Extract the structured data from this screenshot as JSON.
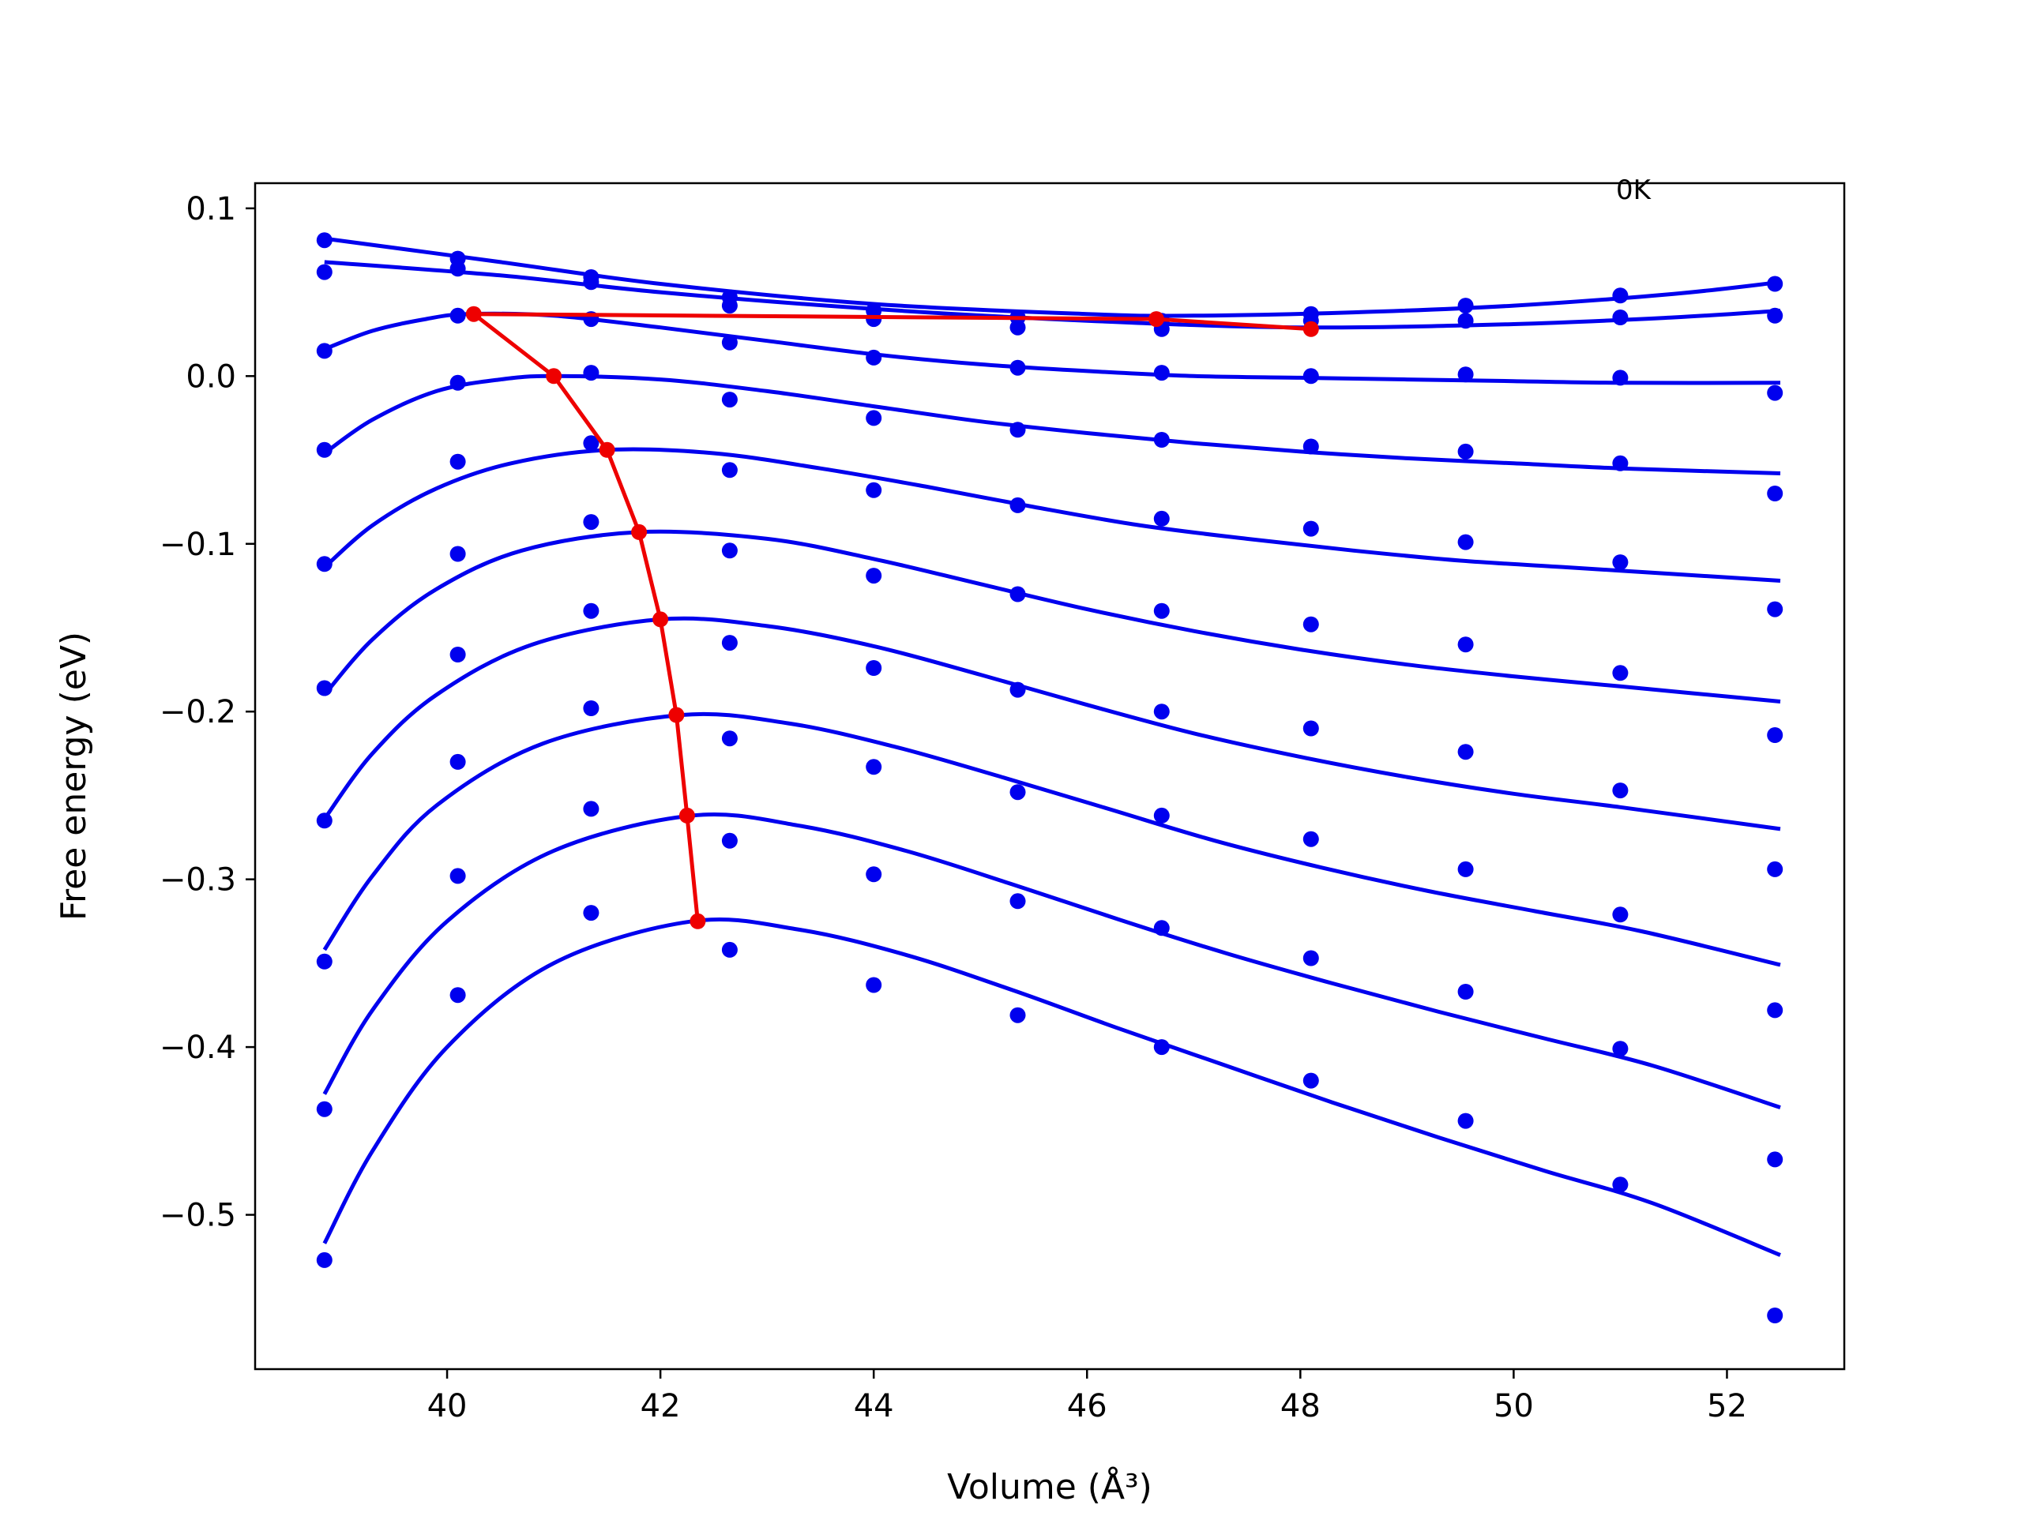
{
  "chart_data": {
    "type": "line",
    "xlabel": "Volume (Å³)",
    "ylabel": "Free energy (eV)",
    "xlim": [
      38.2,
      53.1
    ],
    "ylim": [
      -0.592,
      0.115
    ],
    "xticks": [
      40,
      42,
      44,
      46,
      48,
      50,
      52
    ],
    "yticks": [
      -0.5,
      -0.4,
      -0.3,
      -0.2,
      -0.1,
      0.0,
      0.1
    ],
    "xtick_labels": [
      "40",
      "42",
      "44",
      "46",
      "48",
      "50",
      "52"
    ],
    "ytick_labels": [
      "−0.5",
      "−0.4",
      "−0.3",
      "−0.2",
      "−0.1",
      "0.0",
      "0.1"
    ],
    "grid": false,
    "annotation": "0K",
    "colors": {
      "curves": "#0000ee",
      "points": "#0000ee",
      "minima": "#ee0000"
    },
    "volumes": [
      38.85,
      40.1,
      41.35,
      42.65,
      44.0,
      45.35,
      46.7,
      48.1,
      49.55,
      51.0,
      52.45
    ],
    "series": [
      {
        "points": [
          0.081,
          0.07,
          0.059,
          0.047,
          0.039,
          0.035,
          0.033,
          0.037,
          0.042,
          0.048,
          0.055
        ],
        "curve": [
          [
            38.85,
            0.082
          ],
          [
            40.5,
            0.068
          ],
          [
            42.0,
            0.055
          ],
          [
            44.0,
            0.043
          ],
          [
            46.0,
            0.037
          ],
          [
            47.0,
            0.036
          ],
          [
            48.5,
            0.038
          ],
          [
            50.0,
            0.042
          ],
          [
            51.5,
            0.049
          ],
          [
            52.5,
            0.056
          ]
        ]
      },
      {
        "points": [
          0.062,
          0.064,
          0.056,
          0.042,
          0.034,
          0.029,
          0.028,
          0.033,
          0.033,
          0.035,
          0.036
        ],
        "curve": [
          [
            38.85,
            0.068
          ],
          [
            40.5,
            0.06
          ],
          [
            42.0,
            0.05
          ],
          [
            44.0,
            0.04
          ],
          [
            46.0,
            0.033
          ],
          [
            48.0,
            0.029
          ],
          [
            50.0,
            0.031
          ],
          [
            51.5,
            0.035
          ],
          [
            52.5,
            0.039
          ]
        ]
      },
      {
        "points": [
          0.015,
          0.036,
          0.034,
          0.02,
          0.011,
          0.005,
          0.002,
          0.0,
          0.001,
          -0.001,
          -0.01
        ],
        "curve": [
          [
            38.85,
            0.016
          ],
          [
            39.3,
            0.027
          ],
          [
            39.8,
            0.034
          ],
          [
            40.2,
            0.037
          ],
          [
            41.0,
            0.036
          ],
          [
            42.0,
            0.029
          ],
          [
            43.0,
            0.021
          ],
          [
            44.0,
            0.013
          ],
          [
            45.0,
            0.007
          ],
          [
            46.0,
            0.003
          ],
          [
            47.0,
            0.0
          ],
          [
            48.0,
            -0.001
          ],
          [
            49.0,
            -0.002
          ],
          [
            50.0,
            -0.003
          ],
          [
            51.0,
            -0.004
          ],
          [
            52.5,
            -0.004
          ]
        ]
      },
      {
        "points": [
          -0.044,
          -0.004,
          0.002,
          -0.014,
          -0.025,
          -0.032,
          -0.038,
          -0.042,
          -0.045,
          -0.052,
          -0.07
        ],
        "curve": [
          [
            38.85,
            -0.046
          ],
          [
            39.3,
            -0.026
          ],
          [
            39.9,
            -0.009
          ],
          [
            40.5,
            -0.002
          ],
          [
            41.0,
            0.0
          ],
          [
            42.0,
            -0.002
          ],
          [
            43.0,
            -0.009
          ],
          [
            44.0,
            -0.018
          ],
          [
            45.0,
            -0.027
          ],
          [
            46.0,
            -0.034
          ],
          [
            47.0,
            -0.04
          ],
          [
            48.0,
            -0.045
          ],
          [
            49.0,
            -0.049
          ],
          [
            50.0,
            -0.052
          ],
          [
            51.0,
            -0.055
          ],
          [
            52.5,
            -0.058
          ]
        ]
      },
      {
        "points": [
          -0.112,
          -0.051,
          -0.04,
          -0.056,
          -0.068,
          -0.077,
          -0.085,
          -0.091,
          -0.099,
          -0.111,
          -0.139
        ],
        "curve": [
          [
            38.85,
            -0.114
          ],
          [
            39.3,
            -0.089
          ],
          [
            39.9,
            -0.067
          ],
          [
            40.6,
            -0.052
          ],
          [
            41.5,
            -0.044
          ],
          [
            42.5,
            -0.046
          ],
          [
            43.5,
            -0.055
          ],
          [
            44.5,
            -0.066
          ],
          [
            45.5,
            -0.078
          ],
          [
            46.5,
            -0.089
          ],
          [
            47.5,
            -0.097
          ],
          [
            48.5,
            -0.104
          ],
          [
            49.5,
            -0.11
          ],
          [
            50.5,
            -0.114
          ],
          [
            51.5,
            -0.118
          ],
          [
            52.5,
            -0.122
          ]
        ]
      },
      {
        "points": [
          -0.186,
          -0.106,
          -0.087,
          -0.104,
          -0.119,
          -0.13,
          -0.14,
          -0.148,
          -0.16,
          -0.177,
          -0.214
        ],
        "curve": [
          [
            38.85,
            -0.19
          ],
          [
            39.3,
            -0.157
          ],
          [
            39.9,
            -0.127
          ],
          [
            40.7,
            -0.104
          ],
          [
            41.8,
            -0.093
          ],
          [
            43.0,
            -0.097
          ],
          [
            44.0,
            -0.109
          ],
          [
            45.0,
            -0.124
          ],
          [
            46.0,
            -0.139
          ],
          [
            47.0,
            -0.152
          ],
          [
            48.0,
            -0.163
          ],
          [
            49.0,
            -0.172
          ],
          [
            50.0,
            -0.179
          ],
          [
            51.0,
            -0.185
          ],
          [
            52.5,
            -0.194
          ]
        ]
      },
      {
        "points": [
          -0.265,
          -0.166,
          -0.14,
          -0.159,
          -0.174,
          -0.187,
          -0.2,
          -0.21,
          -0.224,
          -0.247,
          -0.294
        ],
        "curve": [
          [
            38.85,
            -0.264
          ],
          [
            39.3,
            -0.225
          ],
          [
            39.9,
            -0.19
          ],
          [
            40.8,
            -0.16
          ],
          [
            42.0,
            -0.145
          ],
          [
            43.0,
            -0.149
          ],
          [
            44.0,
            -0.161
          ],
          [
            45.0,
            -0.178
          ],
          [
            46.0,
            -0.196
          ],
          [
            47.0,
            -0.213
          ],
          [
            48.0,
            -0.227
          ],
          [
            49.0,
            -0.239
          ],
          [
            50.0,
            -0.249
          ],
          [
            51.0,
            -0.257
          ],
          [
            52.5,
            -0.27
          ]
        ]
      },
      {
        "points": [
          -0.349,
          -0.23,
          -0.198,
          -0.216,
          -0.233,
          -0.248,
          -0.262,
          -0.276,
          -0.294,
          -0.321,
          -0.378
        ],
        "curve": [
          [
            38.85,
            -0.342
          ],
          [
            39.3,
            -0.298
          ],
          [
            39.9,
            -0.256
          ],
          [
            40.9,
            -0.219
          ],
          [
            42.2,
            -0.202
          ],
          [
            43.2,
            -0.207
          ],
          [
            44.2,
            -0.221
          ],
          [
            45.2,
            -0.239
          ],
          [
            46.2,
            -0.258
          ],
          [
            47.2,
            -0.277
          ],
          [
            48.2,
            -0.293
          ],
          [
            49.2,
            -0.307
          ],
          [
            50.2,
            -0.319
          ],
          [
            51.2,
            -0.331
          ],
          [
            52.5,
            -0.351
          ]
        ]
      },
      {
        "points": [
          -0.437,
          -0.298,
          -0.258,
          -0.277,
          -0.297,
          -0.313,
          -0.329,
          -0.347,
          -0.367,
          -0.401,
          -0.467
        ],
        "curve": [
          [
            38.85,
            -0.428
          ],
          [
            39.3,
            -0.378
          ],
          [
            40.0,
            -0.325
          ],
          [
            41.0,
            -0.283
          ],
          [
            42.3,
            -0.262
          ],
          [
            43.3,
            -0.268
          ],
          [
            44.3,
            -0.283
          ],
          [
            45.3,
            -0.303
          ],
          [
            46.3,
            -0.324
          ],
          [
            47.3,
            -0.344
          ],
          [
            48.3,
            -0.362
          ],
          [
            49.3,
            -0.379
          ],
          [
            50.3,
            -0.395
          ],
          [
            51.3,
            -0.411
          ],
          [
            52.5,
            -0.436
          ]
        ]
      },
      {
        "points": [
          -0.527,
          -0.369,
          -0.32,
          -0.342,
          -0.363,
          -0.381,
          -0.4,
          -0.42,
          -0.444,
          -0.482,
          -0.56
        ],
        "curve": [
          [
            38.85,
            -0.517
          ],
          [
            39.3,
            -0.462
          ],
          [
            40.0,
            -0.4
          ],
          [
            41.0,
            -0.35
          ],
          [
            42.3,
            -0.325
          ],
          [
            43.3,
            -0.33
          ],
          [
            44.3,
            -0.345
          ],
          [
            45.3,
            -0.366
          ],
          [
            46.3,
            -0.389
          ],
          [
            47.3,
            -0.411
          ],
          [
            48.3,
            -0.433
          ],
          [
            49.3,
            -0.454
          ],
          [
            50.3,
            -0.474
          ],
          [
            51.3,
            -0.493
          ],
          [
            52.5,
            -0.524
          ]
        ]
      }
    ],
    "minima": {
      "x": [
        48.1,
        46.65,
        40.25,
        41.0,
        41.5,
        41.8,
        42.0,
        42.15,
        42.25,
        42.35
      ],
      "y": [
        0.028,
        0.034,
        0.037,
        0.0,
        -0.044,
        -0.093,
        -0.145,
        -0.202,
        -0.262,
        -0.325
      ]
    }
  }
}
